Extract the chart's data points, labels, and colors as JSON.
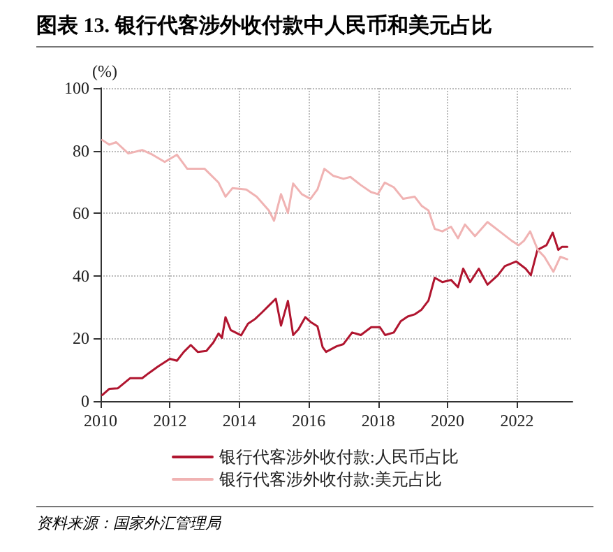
{
  "chart_data": {
    "type": "line",
    "title": "图表 13. 银行代客涉外收付款中人民币和美元占比",
    "ylabel": "(%)",
    "annotations": [
      "资料来源：国家外汇管理局"
    ],
    "xlim": [
      2010,
      2023.6
    ],
    "xticks": [
      2010,
      2012,
      2014,
      2016,
      2018,
      2020,
      2022
    ],
    "ylim": [
      0,
      100
    ],
    "yticks": [
      0,
      20,
      40,
      60,
      80,
      100
    ],
    "grid": true,
    "legend": "bottom",
    "marker": "none",
    "line_style": "solid",
    "series": [
      {
        "name": "银行代客涉外收付款:人民币占比",
        "color": "#b0152f",
        "x": [
          2010.05,
          2010.25,
          2010.5,
          2010.85,
          2011.2,
          2011.4,
          2011.65,
          2012.0,
          2012.2,
          2012.4,
          2012.6,
          2012.8,
          2013.05,
          2013.25,
          2013.4,
          2013.5,
          2013.6,
          2013.75,
          2014.05,
          2014.25,
          2014.45,
          2014.65,
          2014.85,
          2015.05,
          2015.2,
          2015.4,
          2015.55,
          2015.7,
          2015.9,
          2016.05,
          2016.25,
          2016.4,
          2016.5,
          2016.8,
          2017.0,
          2017.25,
          2017.5,
          2017.8,
          2018.05,
          2018.2,
          2018.45,
          2018.65,
          2018.85,
          2019.05,
          2019.25,
          2019.45,
          2019.63,
          2019.85,
          2020.1,
          2020.3,
          2020.45,
          2020.65,
          2020.9,
          2021.15,
          2021.45,
          2021.65,
          2021.98,
          2022.25,
          2022.4,
          2022.59,
          2022.85,
          2023.03,
          2023.19,
          2023.3,
          2023.45
        ],
        "values": [
          1.9,
          3.9,
          4.1,
          7.3,
          7.3,
          9.0,
          11,
          13.5,
          12.9,
          15.7,
          17.9,
          15.7,
          16,
          18.7,
          21.6,
          20.2,
          26.8,
          22.7,
          21,
          24.7,
          26.2,
          28.3,
          30.5,
          32.7,
          24.1,
          32,
          21.1,
          22.9,
          26.8,
          25.3,
          23.9,
          17.2,
          15.7,
          17.5,
          18.2,
          21.9,
          21.1,
          23.6,
          23.6,
          21.1,
          21.9,
          25.5,
          27,
          27.7,
          29.2,
          32.1,
          39.4,
          38,
          38.7,
          36.4,
          42.3,
          38,
          42.3,
          37.2,
          40.2,
          43.1,
          44.6,
          42.3,
          40.2,
          48.3,
          49.8,
          53.8,
          48.3,
          49.3,
          49.3
        ]
      },
      {
        "name": "银行代客涉外收付款:美元占比",
        "color": "#f0b3b3",
        "x": [
          2010.05,
          2010.25,
          2010.45,
          2010.8,
          2011.2,
          2011.5,
          2011.85,
          2012.2,
          2012.5,
          2013.0,
          2013.4,
          2013.6,
          2013.8,
          2014.2,
          2014.5,
          2014.85,
          2015.0,
          2015.2,
          2015.4,
          2015.55,
          2015.8,
          2016.05,
          2016.25,
          2016.45,
          2016.7,
          2017.0,
          2017.2,
          2017.5,
          2017.79,
          2017.99,
          2018.19,
          2018.45,
          2018.72,
          2019.05,
          2019.25,
          2019.45,
          2019.63,
          2019.85,
          2020.1,
          2020.3,
          2020.5,
          2020.79,
          2021.15,
          2021.5,
          2021.85,
          2022.05,
          2022.2,
          2022.38,
          2022.6,
          2022.79,
          2023.05,
          2023.25,
          2023.45
        ],
        "values": [
          83.4,
          81.9,
          82.7,
          79.1,
          80.2,
          78.7,
          76.4,
          78.7,
          74.2,
          74.2,
          69.8,
          65.3,
          68,
          67.6,
          65.3,
          60.9,
          57.6,
          66.1,
          60.1,
          69.5,
          66.1,
          64.6,
          67.6,
          74.2,
          72,
          71,
          71.6,
          69,
          66.8,
          66.1,
          69.8,
          68.3,
          64.6,
          65.3,
          62.4,
          60.9,
          55,
          54.2,
          55.7,
          52,
          56.4,
          52.7,
          57.2,
          54.2,
          51.2,
          49.8,
          51.2,
          54.2,
          48.3,
          46.1,
          41.3,
          46.1,
          45.3
        ]
      }
    ]
  }
}
